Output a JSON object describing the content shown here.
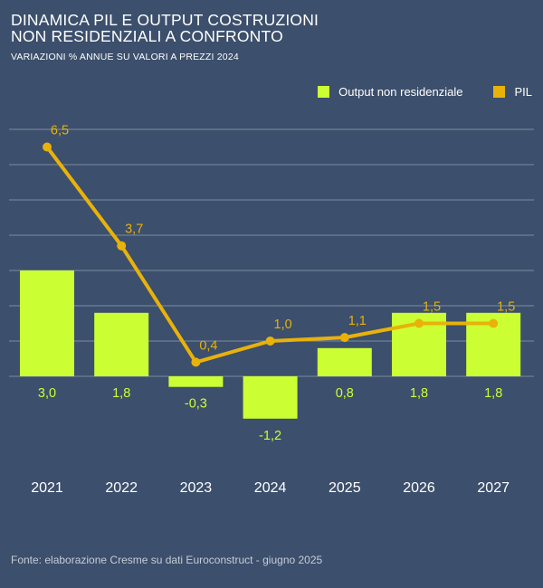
{
  "title_line1": "DINAMICA PIL E OUTPUT COSTRUZIONI",
  "title_line2": "NON RESIDENZIALI A CONFRONTO",
  "subtitle": "VARIAZIONI % ANNUE SU VALORI A PREZZI 2024",
  "footer": "Fonte: elaborazione Cresme su dati Euroconstruct - giugno 2025",
  "colors": {
    "background": "#3c4f6c",
    "bar": "#ccff33",
    "line": "#e8b20a",
    "grid": "#7e8ba0"
  },
  "chart_data": {
    "type": "bar+line",
    "categories": [
      "2021",
      "2022",
      "2023",
      "2024",
      "2025",
      "2026",
      "2027"
    ],
    "series": [
      {
        "name": "Output non residenziale",
        "type": "bar",
        "values": [
          3.0,
          1.8,
          -0.3,
          -1.2,
          0.8,
          1.8,
          1.8
        ],
        "labels": [
          "3,0",
          "1,8",
          "-0,3",
          "-1,2",
          "0,8",
          "1,8",
          "1,8"
        ]
      },
      {
        "name": "PIL",
        "type": "line",
        "values": [
          6.5,
          3.7,
          0.4,
          1.0,
          1.1,
          1.5,
          1.5
        ],
        "labels": [
          "6,5",
          "3,7",
          "0,4",
          "1,0",
          "1,1",
          "1,5",
          "1,5"
        ]
      }
    ],
    "ylim": [
      -1.5,
      7.0
    ],
    "gridlines": [
      0,
      1,
      2,
      3,
      4,
      5,
      6,
      7
    ],
    "grid": true,
    "legend": "top-right"
  }
}
